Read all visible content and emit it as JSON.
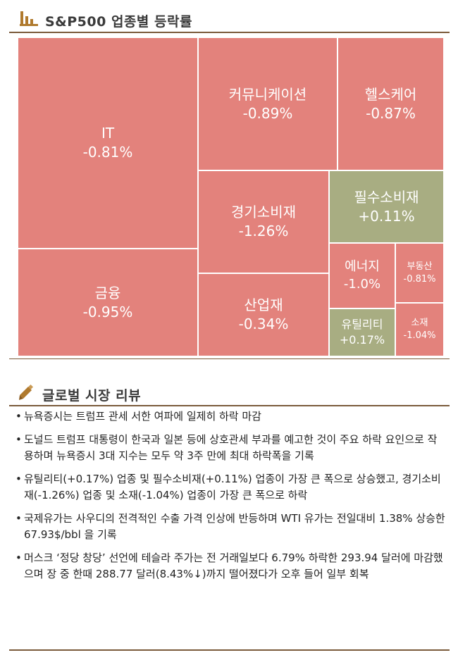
{
  "colors": {
    "down": "#e3827c",
    "up": "#a8ad82",
    "title": "#3a3a3a",
    "rule": "#7a5a3a"
  },
  "section1": {
    "title": "S&P500 업종별 등락률",
    "icon": "bar-chart-icon"
  },
  "chart_data": {
    "type": "treemap",
    "title": "S&P500 업종별 등락률",
    "cells": [
      {
        "name": "IT",
        "value": "-0.81%",
        "change": -0.81
      },
      {
        "name": "금융",
        "value": "-0.95%",
        "change": -0.95
      },
      {
        "name": "커뮤니케이션",
        "value": "-0.89%",
        "change": -0.89
      },
      {
        "name": "헬스케어",
        "value": "-0.87%",
        "change": -0.87
      },
      {
        "name": "경기소비재",
        "value": "-1.26%",
        "change": -1.26
      },
      {
        "name": "산업재",
        "value": "-0.34%",
        "change": -0.34
      },
      {
        "name": "필수소비재",
        "value": "+0.11%",
        "change": 0.11
      },
      {
        "name": "에너지",
        "value": "-1.0%",
        "change": -1.0
      },
      {
        "name": "부동산",
        "value": "-0.81%",
        "change": -0.81
      },
      {
        "name": "유틸리티",
        "value": "+0.17%",
        "change": 0.17
      },
      {
        "name": "소재",
        "value": "-1.04%",
        "change": -1.04
      }
    ]
  },
  "section2": {
    "title": "글로벌 시장 리뷰",
    "icon": "pencil-icon",
    "bullets": [
      "뉴욕증시는 트럼프 관세 서한 여파에 일제히 하락 마감",
      "도널드 트럼프 대통령이 한국과 일본 등에 상호관세 부과를 예고한 것이 주요 하락 요인으로 작용하며 뉴욕증시 3대 지수는 모두 약 3주 만에 최대 하락폭을 기록",
      "유틸리티(+0.17%) 업종 및 필수소비재(+0.11%) 업종이 가장 큰 폭으로 상승했고, 경기소비재(-1.26%) 업종 및 소재(-1.04%) 업종이 가장 큰 폭으로 하락",
      "국제유가는 사우디의 전격적인 수출 가격 인상에 반등하며 WTI 유가는 전일대비 1.38% 상승한 67.93$/bbl 을 기록",
      "머스크 ‘정당 창당’ 선언에 테슬라 주가는 전 거래일보다 6.79% 하락한 293.94 달러에 마감했으며 장 중 한때 288.77 달러(8.43%↓)까지 떨어졌다가 오후 들어 일부 회복"
    ]
  }
}
